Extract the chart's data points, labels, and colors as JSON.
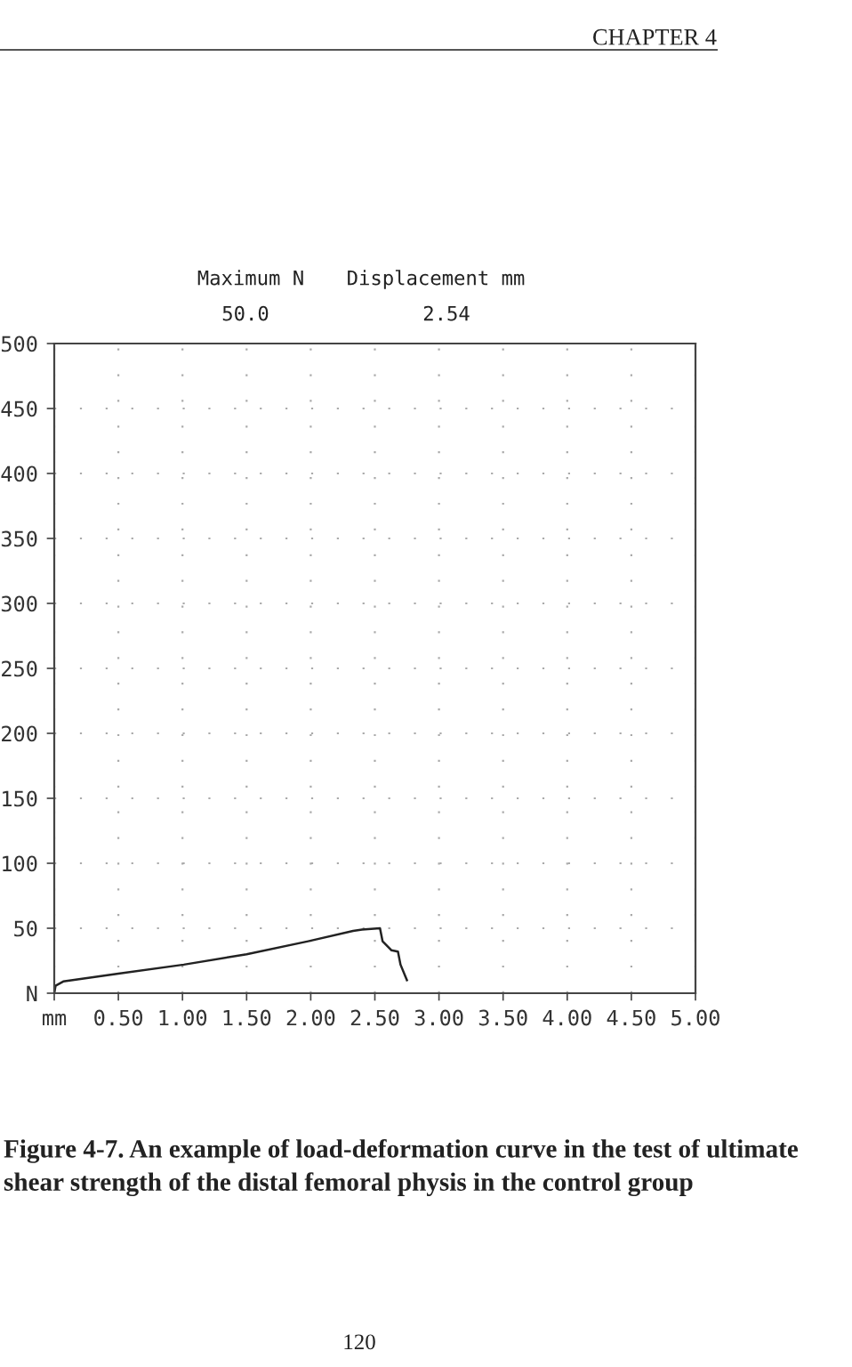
{
  "chart_data": {
    "type": "line",
    "x": [
      0,
      0.01,
      0.07,
      0.5,
      1.01,
      1.5,
      1.98,
      2.33,
      2.4,
      2.54,
      2.56,
      2.63,
      2.68,
      2.7,
      2.75
    ],
    "values": [
      0,
      5.7,
      9,
      15,
      22,
      30,
      40,
      48,
      49,
      50,
      40,
      33,
      32,
      22,
      10
    ],
    "color": "#222222",
    "xlim": [
      0,
      5
    ],
    "xticks": [
      {
        "value": 0,
        "label": "mm"
      },
      {
        "value": 0.5,
        "label": "0.50"
      },
      {
        "value": 1,
        "label": "1.00"
      },
      {
        "value": 1.5,
        "label": "1.50"
      },
      {
        "value": 2,
        "label": "2.00"
      },
      {
        "value": 2.5,
        "label": "2.50"
      },
      {
        "value": 3,
        "label": "3.00"
      },
      {
        "value": 3.5,
        "label": "3.50"
      },
      {
        "value": 4,
        "label": "4.00"
      },
      {
        "value": 4.5,
        "label": "4.50"
      },
      {
        "value": 5,
        "label": "5.00"
      }
    ],
    "ylim": [
      0,
      500
    ],
    "yticks": [
      {
        "value": 0,
        "label": "N"
      },
      50,
      100,
      150,
      200,
      250,
      300,
      350,
      400,
      450,
      500
    ],
    "grid": true,
    "marker": "none",
    "line_style": "solid",
    "annotations": [
      "CHAPTER 4",
      "Maximum N",
      "50.0",
      "Displacement mm",
      "2.54",
      "Figure 4-7. An example of load-deformation curve in the test of ultimate shear strength of the distal femoral physis in the control group",
      "120"
    ]
  }
}
